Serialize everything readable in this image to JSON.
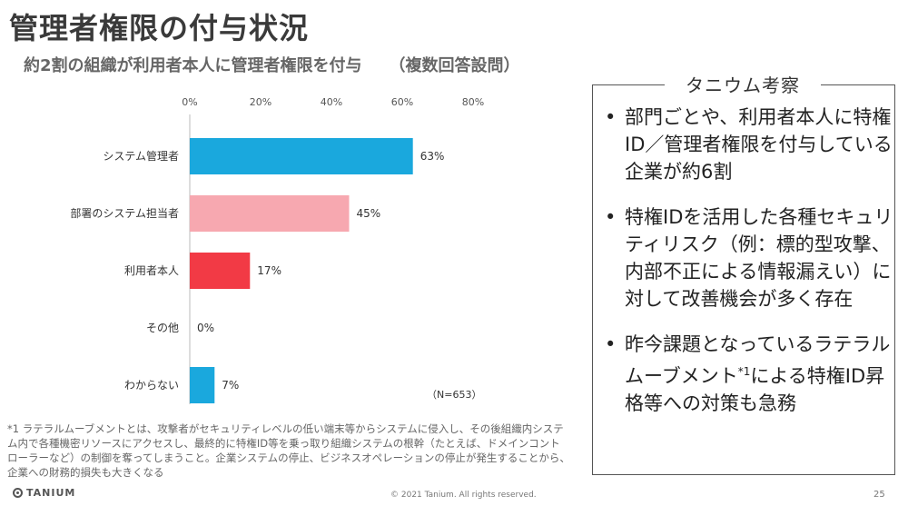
{
  "header": {
    "title": "管理者権限の付与状況",
    "subtitle": "約2割の組織が利用者本人に管理者権限を付与",
    "subtitle_note": "（複数回答設問）"
  },
  "chart_data": {
    "type": "bar",
    "orientation": "horizontal",
    "categories": [
      "システム管理者",
      "部署のシステム担当者",
      "利用者本人",
      "その他",
      "わからない"
    ],
    "values": [
      63,
      45,
      17,
      0,
      7
    ],
    "value_labels": [
      "63%",
      "45%",
      "17%",
      "0%",
      "7%"
    ],
    "bar_colors": [
      "#1aa8dd",
      "#f7a8b0",
      "#f23a45",
      "#1aa8dd",
      "#1aa8dd"
    ],
    "xlim": [
      0,
      80
    ],
    "x_ticks": [
      "0%",
      "20%",
      "40%",
      "60%",
      "80%"
    ],
    "grid": false,
    "sample_note": "（N=653）"
  },
  "sidebar": {
    "title": "タニウム考察",
    "bullets": [
      {
        "text": "部門ごとや、利用者本人に特権ID／管理者権限を付与している企業が約6割"
      },
      {
        "text": "特権IDを活用した各種セキュリティリスク（例：標的型攻撃、内部不正による情報漏えい）に対して改善機会が多く存在"
      },
      {
        "text_before": "昨今課題となっているラテラルムーブメント",
        "sup": "*1",
        "text_after": "による特権ID昇格等への対策も急務"
      }
    ],
    "bullet_char": "•"
  },
  "footnote": "*1 ラテラルムーブメントとは、攻撃者がセキュリティレベルの低い端末等からシステムに侵入し、その後組織内システム内で各種機密リソースにアクセスし、最終的に特権ID等を乗っ取り組織システムの根幹（たとえば、ドメインコントローラーなど）の制御を奪ってしまうこと。企業システムの停止、ビジネスオペレーションの停止が発生することから、企業への財務的損失も大きくなる",
  "footer": {
    "logo": "TANIUM",
    "copyright": "© 2021 Tanium. All rights reserved.",
    "page": "25"
  }
}
